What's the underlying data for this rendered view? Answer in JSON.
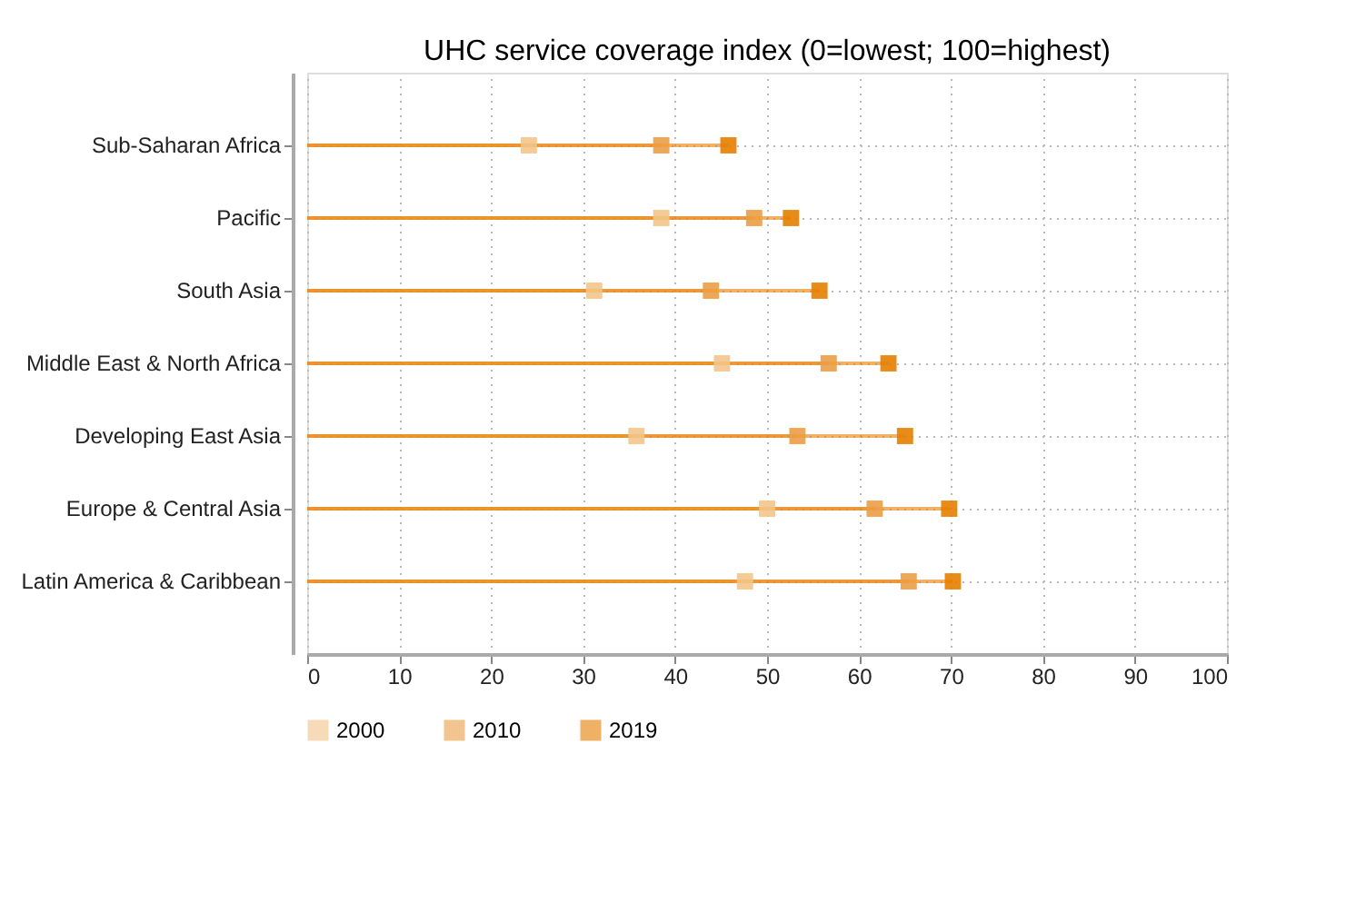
{
  "chart_data": {
    "type": "lollipop",
    "orientation": "horizontal",
    "title": "UHC service coverage index (0=lowest; 100=highest)",
    "categories": [
      "Sub-Saharan Africa",
      "Pacific",
      "South Asia",
      "Middle East & North Africa",
      "Developing East Asia",
      "Europe & Central Asia",
      "Latin America & Caribbean"
    ],
    "series": [
      {
        "name": "2000",
        "color": "#f3c48a",
        "values": [
          24.1,
          38.5,
          31.2,
          45.1,
          35.8,
          50.0,
          47.6
        ]
      },
      {
        "name": "2010",
        "color": "#eb9d45",
        "values": [
          38.5,
          48.6,
          43.9,
          56.7,
          53.3,
          61.7,
          65.4
        ]
      },
      {
        "name": "2019",
        "color": "#e67e00",
        "values": [
          45.8,
          52.6,
          55.7,
          63.2,
          65.0,
          69.8,
          70.2
        ]
      }
    ],
    "xlim": [
      0,
      100
    ],
    "xticks": [
      0,
      10,
      20,
      30,
      40,
      50,
      60,
      70,
      80,
      90,
      100
    ],
    "grid": true,
    "legend": "bottom",
    "marker": "square"
  }
}
